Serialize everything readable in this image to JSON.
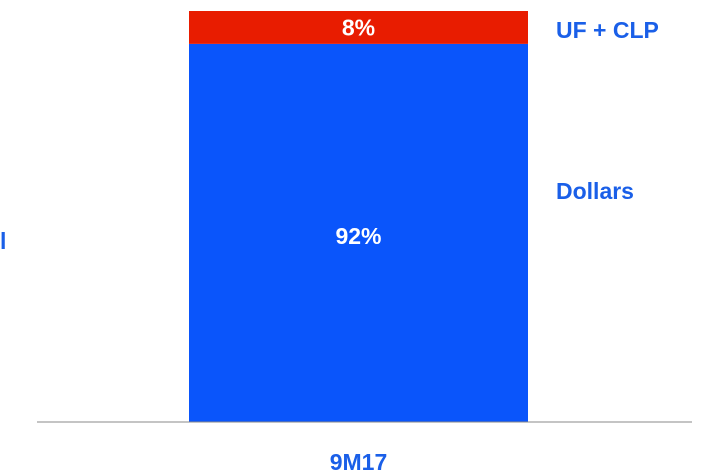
{
  "chart_data": {
    "type": "stacked_bar",
    "categories": [
      "9M17"
    ],
    "series": [
      {
        "name": "Dollars",
        "color": "#0a55fb",
        "values": [
          92
        ],
        "value_labels": [
          "92%"
        ]
      },
      {
        "name": "UF + CLP",
        "color": "#e81c00",
        "values": [
          8
        ],
        "value_labels": [
          "8%"
        ]
      }
    ],
    "ylim": [
      0,
      100
    ],
    "annotation": "l"
  }
}
